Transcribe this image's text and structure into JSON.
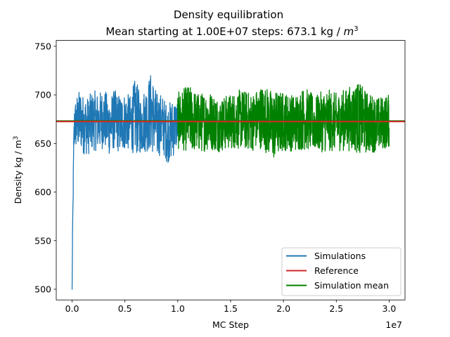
{
  "chart_data": {
    "type": "line",
    "title": "Density equilibration",
    "subtitle": "Mean starting at 1.00E+07 steps: 673.1 kg / m^3",
    "subtitle_parts": {
      "prefix": "Mean starting at 1.00E+07 steps: 673.1 kg / ",
      "unit_base": "m",
      "unit_exp": "3"
    },
    "xlabel": "MC Step",
    "ylabel": "Density kg / m^3",
    "ylabel_parts": {
      "prefix": "Density kg / m",
      "exp": "3"
    },
    "x_offset_label": "1e7",
    "x_scale_factor": 10000000,
    "xlim": [
      -1500000,
      31500000
    ],
    "ylim": [
      489,
      756
    ],
    "x_ticks": [
      0,
      5000000,
      10000000,
      15000000,
      20000000,
      25000000,
      30000000
    ],
    "x_tick_labels": [
      "0.0",
      "0.5",
      "1.0",
      "1.5",
      "2.0",
      "2.5",
      "3.0"
    ],
    "y_ticks": [
      500,
      550,
      600,
      650,
      700,
      750
    ],
    "y_tick_labels": [
      "500",
      "550",
      "600",
      "650",
      "700",
      "750"
    ],
    "grid": false,
    "legend": "bottom-right",
    "series": [
      {
        "name": "Simulations",
        "color": "#1f77b4",
        "x": [
          0,
          50000,
          100000,
          150000,
          200000,
          300000,
          500000,
          800000,
          1000000,
          1500000,
          2000000,
          2500000,
          3000000,
          3500000,
          4000000,
          4500000,
          5000000,
          5500000,
          6000000,
          6500000,
          7000000,
          7500000,
          8000000,
          8500000,
          9000000,
          9500000,
          10000000
        ],
        "y": [
          500,
          560,
          600,
          640,
          665,
          670,
          672,
          675,
          670,
          668,
          674,
          672,
          676,
          668,
          675,
          670,
          673,
          671,
          678,
          669,
          676,
          683,
          668,
          671,
          660,
          665,
          672
        ],
        "band_upper": [
          520,
          580,
          620,
          660,
          690,
          700,
          712,
          715,
          712,
          710,
          718,
          709,
          716,
          706,
          714,
          708,
          710,
          705,
          724,
          712,
          728,
          741,
          718,
          710,
          700,
          690,
          690
        ],
        "band_lower": [
          500,
          540,
          580,
          610,
          622,
          628,
          628,
          628,
          626,
          626,
          630,
          625,
          629,
          622,
          628,
          622,
          627,
          625,
          612,
          630,
          630,
          624,
          620,
          625,
          615,
          603,
          620
        ]
      },
      {
        "name": "Reference",
        "color": "#d62728",
        "x": [
          -1500000,
          31500000
        ],
        "y": [
          672.5,
          672.5
        ]
      },
      {
        "name": "Simulation mean",
        "color": "#008000",
        "mean_value": 673.1,
        "x": [
          10000000,
          11000000,
          12000000,
          13000000,
          14000000,
          15000000,
          16000000,
          17000000,
          18000000,
          19000000,
          20000000,
          21000000,
          22000000,
          23000000,
          24000000,
          25000000,
          26000000,
          27000000,
          28000000,
          29000000,
          30000000
        ],
        "y": [
          673,
          676,
          671,
          674,
          669,
          673,
          675,
          672,
          678,
          668,
          673,
          671,
          676,
          670,
          674,
          672,
          675,
          677,
          671,
          670,
          673
        ],
        "band_upper": [
          712,
          722,
          716,
          714,
          710,
          708,
          715,
          714,
          720,
          706,
          716,
          712,
          718,
          708,
          716,
          716,
          720,
          728,
          716,
          710,
          705
        ],
        "band_lower": [
          630,
          626,
          630,
          628,
          632,
          628,
          628,
          630,
          628,
          604,
          630,
          630,
          626,
          628,
          624,
          632,
          630,
          624,
          628,
          632,
          628
        ]
      }
    ],
    "legend_entries": [
      "Simulations",
      "Reference",
      "Simulation mean"
    ]
  }
}
